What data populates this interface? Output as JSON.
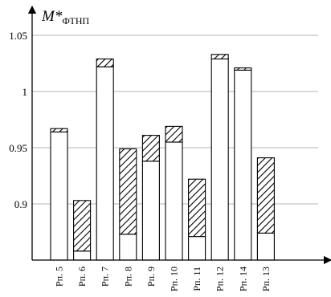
{
  "chart_data": {
    "type": "bar",
    "title": "",
    "ylabel": {
      "main": "M*",
      "subscript": "ФТНП"
    },
    "xlabel": "",
    "ylim": [
      0.85,
      1.05
    ],
    "yticks": [
      0.9,
      0.95,
      1,
      1.05
    ],
    "ytick_labels": [
      "0.9",
      "0.95",
      "1",
      "1.05"
    ],
    "grid": "horizontal",
    "categories": [
      "Рп. 5",
      "Рп. 6",
      "Рп. 7",
      "Рп. 8",
      "Рп. 9",
      "Рп. 10",
      "Рп. 11",
      "Рп. 12",
      "Рп. 14",
      "Рп. 13"
    ],
    "series": [
      {
        "fill": "white",
        "values": [
          0.964,
          0.858,
          1.022,
          0.873,
          0.938,
          0.955,
          0.871,
          1.029,
          1.019,
          0.874
        ]
      },
      {
        "fill": "hatched",
        "values": [
          0.967,
          0.903,
          1.029,
          0.949,
          0.961,
          0.969,
          0.922,
          1.033,
          1.021,
          0.941
        ]
      }
    ],
    "colors": {
      "axis": "#000000",
      "grid": "#9a9a9a",
      "bar_fill": "#ffffff"
    }
  }
}
